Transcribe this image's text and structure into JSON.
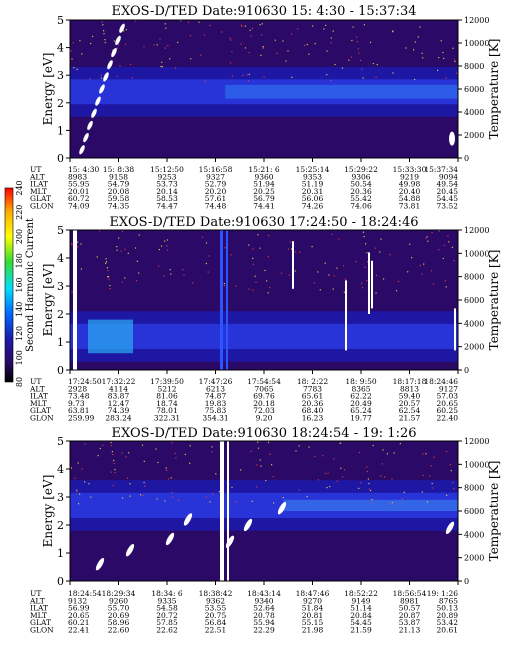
{
  "figure": {
    "colorbar": {
      "label": "Second Harmonic Current",
      "ticks": [
        "80",
        "100",
        "120",
        "140",
        "160",
        "180",
        "200",
        "220",
        "240"
      ]
    }
  },
  "chart_data": [
    {
      "type": "heatmap",
      "title": "EXOS-D/TED   Date:910630  15: 4:30 - 15:37:34",
      "ylabel": "Energy [eV]",
      "y2label": "Temperature [K]",
      "ylim": [
        0,
        5
      ],
      "y2lim": [
        0,
        12000
      ],
      "yticks": [
        "0",
        "1",
        "2",
        "3",
        "4",
        "5"
      ],
      "y2ticks": [
        "0",
        "2000",
        "4000",
        "6000",
        "8000",
        "10000",
        "12000"
      ],
      "band_center_ev": 2.4,
      "grid": false,
      "ephemeris": {
        "labels": [
          "UT",
          "ALT",
          "ILAT",
          "MLT",
          "GLAT",
          "GLON"
        ],
        "columns": [
          [
            "15: 4:30",
            "8983",
            "55.95",
            "20.01",
            "60.72",
            "74.09"
          ],
          [
            "15: 8:38",
            "9158",
            "54.79",
            "20.08",
            "59.58",
            "74.35"
          ],
          [
            "15:12:50",
            "9253",
            "53.73",
            "20.14",
            "58.53",
            "74.47"
          ],
          [
            "15:16:58",
            "9327",
            "52.79",
            "20.20",
            "57.61",
            "74.48"
          ],
          [
            "15:21: 6",
            "9360",
            "51.94",
            "20.25",
            "56.79",
            "74.41"
          ],
          [
            "15:25:14",
            "9353",
            "51.19",
            "20.31",
            "56.06",
            "74.26"
          ],
          [
            "15:29:22",
            "9306",
            "50.54",
            "20.36",
            "55.42",
            "74.06"
          ],
          [
            "15:33:30",
            "9219",
            "49.98",
            "20.40",
            "54.88",
            "73.81"
          ],
          [
            "15:37:34",
            "9094",
            "49.54",
            "20.45",
            "54.45",
            "73.52"
          ]
        ]
      }
    },
    {
      "type": "heatmap",
      "title": "EXOS-D/TED   Date:910630  17:24:50 - 18:24:46",
      "ylabel": "Energy [eV]",
      "y2label": "Temperature [K]",
      "ylim": [
        0,
        5
      ],
      "y2lim": [
        0,
        12000
      ],
      "yticks": [
        "0",
        "1",
        "2",
        "3",
        "4",
        "5"
      ],
      "y2ticks": [
        "0",
        "2000",
        "4000",
        "6000",
        "8000",
        "10000",
        "12000"
      ],
      "band_center_ev": 1.2,
      "grid": false,
      "ephemeris": {
        "labels": [
          "UT",
          "ALT",
          "ILAT",
          "MLT",
          "GLAT",
          "GLON"
        ],
        "columns": [
          [
            "17:24:50",
            "2928",
            "73.48",
            "9.73",
            "63.81",
            "259.99"
          ],
          [
            "17:32:22",
            "4114",
            "83.87",
            "12.47",
            "74.39",
            "283.24"
          ],
          [
            "17:39:50",
            "5212",
            "81.06",
            "18.74",
            "78.01",
            "322.31"
          ],
          [
            "17:47:26",
            "6213",
            "74.87",
            "19.83",
            "75.83",
            "354.31"
          ],
          [
            "17:54:54",
            "7065",
            "69.76",
            "20.18",
            "72.03",
            "9.20"
          ],
          [
            "18: 2:22",
            "7783",
            "65.61",
            "20.36",
            "68.40",
            "16.23"
          ],
          [
            "18: 9:50",
            "8365",
            "62.22",
            "20.49",
            "65.24",
            "19.77"
          ],
          [
            "18:17:18",
            "8813",
            "59.40",
            "20.57",
            "62.54",
            "21.57"
          ],
          [
            "18:24:46",
            "9127",
            "57.03",
            "20.65",
            "60.25",
            "22.40"
          ]
        ]
      }
    },
    {
      "type": "heatmap",
      "title": "EXOS-D/TED   Date:910630  18:24:54 - 19: 1:26",
      "ylabel": "Energy [eV]",
      "y2label": "Temperature [K]",
      "ylim": [
        0,
        5
      ],
      "y2lim": [
        0,
        12000
      ],
      "yticks": [
        "0",
        "1",
        "2",
        "3",
        "4",
        "5"
      ],
      "y2ticks": [
        "0",
        "2000",
        "4000",
        "6000",
        "8000",
        "10000",
        "12000"
      ],
      "band_center_ev": 2.7,
      "grid": false,
      "ephemeris": {
        "labels": [
          "UT",
          "ALT",
          "ILAT",
          "MLT",
          "GLAT",
          "GLON"
        ],
        "columns": [
          [
            "18:24:54",
            "9132",
            "56.99",
            "20.65",
            "60.21",
            "22.41"
          ],
          [
            "18:29:34",
            "9260",
            "55.70",
            "20.69",
            "58.96",
            "22.60"
          ],
          [
            "18:34: 6",
            "9335",
            "54.58",
            "20.72",
            "57.85",
            "22.62"
          ],
          [
            "18:38:42",
            "9362",
            "53.55",
            "20.75",
            "56.84",
            "22.51"
          ],
          [
            "18:43:14",
            "9340",
            "52.64",
            "20.78",
            "55.94",
            "22.29"
          ],
          [
            "18:47:46",
            "9270",
            "51.84",
            "20.81",
            "55.15",
            "21.98"
          ],
          [
            "18:52:22",
            "9149",
            "51.14",
            "20.84",
            "54.45",
            "21.59"
          ],
          [
            "18:56:54",
            "8981",
            "50.57",
            "20.87",
            "53.87",
            "21.13"
          ],
          [
            "19: 1:26",
            "8765",
            "50.13",
            "20.89",
            "53.42",
            "20.61"
          ]
        ]
      }
    }
  ]
}
